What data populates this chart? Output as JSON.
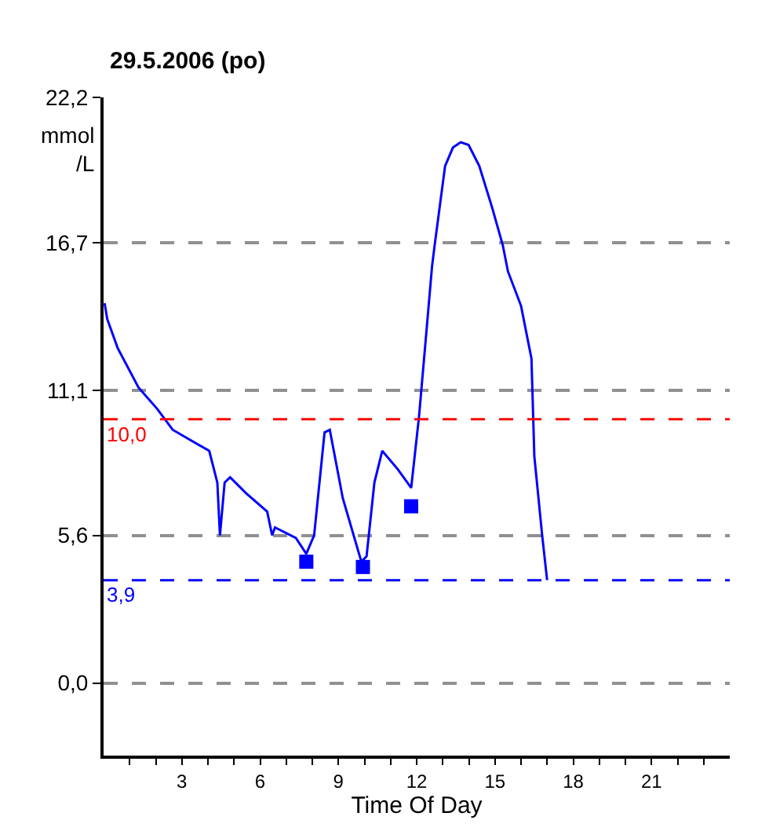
{
  "chart_data": {
    "type": "line",
    "title": "29.5.2006 (po)",
    "xlabel": "Time Of Day",
    "ylabel": "mmol/L",
    "xlim": [
      0,
      24
    ],
    "ylim": [
      -2.75,
      22.2
    ],
    "xticks": [
      {
        "value": 1,
        "label": null
      },
      {
        "value": 2,
        "label": null
      },
      3,
      {
        "value": 4,
        "label": null
      },
      {
        "value": 5,
        "label": null
      },
      6,
      {
        "value": 7,
        "label": null
      },
      {
        "value": 8,
        "label": null
      },
      9,
      {
        "value": 10,
        "label": null
      },
      {
        "value": 11,
        "label": null
      },
      12,
      {
        "value": 13,
        "label": null
      },
      {
        "value": 14,
        "label": null
      },
      15,
      {
        "value": 16,
        "label": null
      },
      {
        "value": 17,
        "label": null
      },
      18,
      {
        "value": 19,
        "label": null
      },
      {
        "value": 20,
        "label": null
      },
      21,
      {
        "value": 22,
        "label": null
      },
      {
        "value": 23,
        "label": null
      }
    ],
    "yticks": [
      {
        "value": 0,
        "label": "0,0"
      },
      {
        "value": 5.6,
        "label": "5,6"
      },
      {
        "value": 11.1,
        "label": "11,1"
      },
      {
        "value": 16.7,
        "label": "16,7"
      },
      {
        "value": 22.2,
        "label": "22,2"
      }
    ],
    "grid": "y",
    "series": [
      {
        "color": "#0000ff",
        "marker": "none",
        "x": [
          0.04,
          0.14,
          0.54,
          1.34,
          2.05,
          2.65,
          4.05,
          4.36,
          4.46,
          4.64,
          4.85,
          5.46,
          6.27,
          6.46,
          6.57,
          7.37,
          7.77,
          8.07,
          8.47,
          8.67,
          9.17,
          9.88,
          10.08,
          10.38,
          10.68,
          11.28,
          11.79,
          12.09,
          12.39,
          12.59,
          12.69,
          13.09,
          13.39,
          13.69,
          13.99,
          14.4,
          14.9,
          15.3,
          15.5,
          16.0,
          16.4,
          16.51,
          16.81,
          17.0
        ],
        "values": [
          14.4,
          13.8,
          12.7,
          11.2,
          10.4,
          9.6,
          8.8,
          7.6,
          5.6,
          7.6,
          7.8,
          7.2,
          6.5,
          5.6,
          5.9,
          5.5,
          4.9,
          5.6,
          9.5,
          9.6,
          7.0,
          4.6,
          4.8,
          7.6,
          8.8,
          8.1,
          7.4,
          10.1,
          13.5,
          15.8,
          16.6,
          19.6,
          20.3,
          20.5,
          20.4,
          19.6,
          18.0,
          16.6,
          15.6,
          14.3,
          12.3,
          8.6,
          5.6,
          3.9
        ]
      },
      {
        "type": "scatter",
        "color": "#0000ff",
        "marker": "square",
        "x": [
          7.77,
          9.94,
          11.79
        ],
        "values": [
          4.6,
          4.4,
          6.7
        ]
      }
    ],
    "ref_lines": [
      {
        "axis": "y",
        "value": 10.0,
        "label": "10,0",
        "color": "#ff0000",
        "line_style": "dashed"
      },
      {
        "axis": "y",
        "value": 3.9,
        "label": "3,9",
        "color": "#0000ff",
        "line_style": "dashed"
      }
    ]
  }
}
